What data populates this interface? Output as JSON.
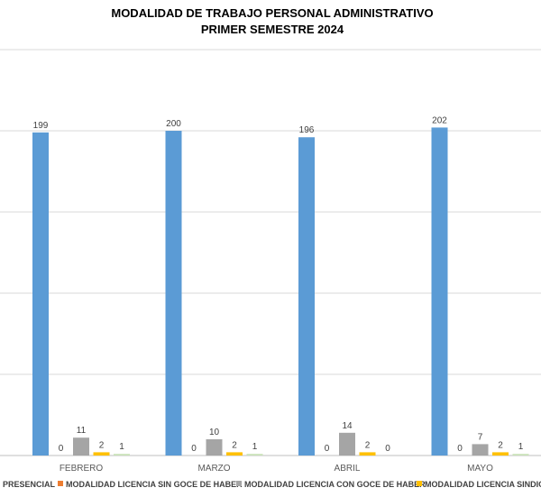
{
  "chart_data": {
    "type": "bar",
    "title": "MODALIDAD DE TRABAJO PERSONAL ADMINISTRATIVO",
    "subtitle": "PRIMER SEMESTRE 2024",
    "categories": [
      "FEBRERO",
      "MARZO",
      "ABRIL",
      "MAYO"
    ],
    "series": [
      {
        "name": "PRESENCIAL",
        "color": "#5B9BD5",
        "values": [
          199,
          200,
          196,
          202
        ]
      },
      {
        "name": "MODALIDAD LICENCIA SIN GOCE DE HABER",
        "color": "#ED7D31",
        "values": [
          0,
          0,
          0,
          0
        ]
      },
      {
        "name": "MODALIDAD LICENCIA CON GOCE DE HABER",
        "color": "#A5A5A5",
        "values": [
          11,
          10,
          14,
          7
        ]
      },
      {
        "name": "MODALIDAD LICENCIA SINDICA",
        "color": "#FFC000",
        "values": [
          2,
          2,
          2,
          2
        ]
      },
      {
        "name": "",
        "color": "#C9E2B8",
        "values": [
          1,
          1,
          0,
          1
        ]
      }
    ],
    "ylim": [
      0,
      250
    ],
    "grid": true,
    "legend": "bottom"
  }
}
